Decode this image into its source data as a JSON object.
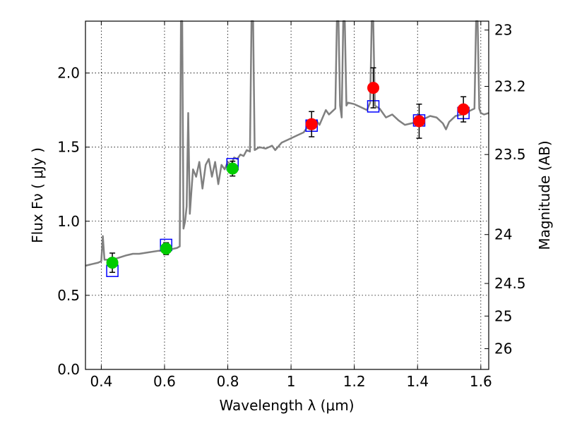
{
  "chart_data": {
    "type": "scatter",
    "title": "",
    "xlabel": "Wavelength  λ (μm)",
    "ylabel": "Flux  Fν  ( μJy )",
    "y2label": "Magnitude (AB)",
    "xlim": [
      0.35,
      1.625
    ],
    "ylim": [
      0.0,
      2.35
    ],
    "grid": true,
    "x_ticks": [
      0.4,
      0.6,
      0.8,
      1.0,
      1.2,
      1.4,
      1.6
    ],
    "x_tick_labels": [
      "0.4",
      "0.6",
      "0.8",
      "1",
      "1.2",
      "1.4",
      "1.6"
    ],
    "y_ticks": [
      0.0,
      0.5,
      1.0,
      1.5,
      2.0
    ],
    "y_tick_labels": [
      "0.0",
      "0.5",
      "1.0",
      "1.5",
      "2.0"
    ],
    "mag_ticks": [
      {
        "label": "23",
        "flux": 2.29
      },
      {
        "label": "23.2",
        "flux": 1.91
      },
      {
        "label": "23.5",
        "flux": 1.45
      },
      {
        "label": "24",
        "flux": 0.91
      },
      {
        "label": "24.5",
        "flux": 0.58
      },
      {
        "label": "25",
        "flux": 0.36
      },
      {
        "label": "26",
        "flux": 0.14
      }
    ],
    "series": [
      {
        "name": "model_spectrum",
        "kind": "line",
        "color": "#808080",
        "points": [
          [
            0.35,
            0.7
          ],
          [
            0.37,
            0.71
          ],
          [
            0.39,
            0.72
          ],
          [
            0.4,
            0.73
          ],
          [
            0.405,
            0.9
          ],
          [
            0.41,
            0.74
          ],
          [
            0.43,
            0.74
          ],
          [
            0.45,
            0.75
          ],
          [
            0.48,
            0.77
          ],
          [
            0.5,
            0.78
          ],
          [
            0.52,
            0.78
          ],
          [
            0.55,
            0.79
          ],
          [
            0.58,
            0.8
          ],
          [
            0.6,
            0.8
          ],
          [
            0.62,
            0.81
          ],
          [
            0.64,
            0.82
          ],
          [
            0.648,
            0.83
          ],
          [
            0.652,
            2.35
          ],
          [
            0.656,
            2.35
          ],
          [
            0.66,
            0.95
          ],
          [
            0.665,
            1.0
          ],
          [
            0.67,
            1.1
          ],
          [
            0.675,
            1.73
          ],
          [
            0.68,
            1.05
          ],
          [
            0.685,
            1.2
          ],
          [
            0.69,
            1.35
          ],
          [
            0.7,
            1.3
          ],
          [
            0.71,
            1.4
          ],
          [
            0.72,
            1.22
          ],
          [
            0.73,
            1.38
          ],
          [
            0.74,
            1.42
          ],
          [
            0.75,
            1.3
          ],
          [
            0.76,
            1.4
          ],
          [
            0.77,
            1.25
          ],
          [
            0.78,
            1.38
          ],
          [
            0.79,
            1.35
          ],
          [
            0.8,
            1.4
          ],
          [
            0.81,
            1.38
          ],
          [
            0.82,
            1.43
          ],
          [
            0.83,
            1.42
          ],
          [
            0.84,
            1.45
          ],
          [
            0.85,
            1.44
          ],
          [
            0.86,
            1.48
          ],
          [
            0.87,
            1.47
          ],
          [
            0.875,
            2.35
          ],
          [
            0.88,
            2.35
          ],
          [
            0.885,
            1.48
          ],
          [
            0.9,
            1.5
          ],
          [
            0.92,
            1.49
          ],
          [
            0.94,
            1.51
          ],
          [
            0.95,
            1.48
          ],
          [
            0.97,
            1.53
          ],
          [
            0.99,
            1.55
          ],
          [
            1.0,
            1.56
          ],
          [
            1.02,
            1.58
          ],
          [
            1.04,
            1.6
          ],
          [
            1.05,
            1.63
          ],
          [
            1.06,
            1.62
          ],
          [
            1.08,
            1.68
          ],
          [
            1.09,
            1.65
          ],
          [
            1.1,
            1.7
          ],
          [
            1.11,
            1.75
          ],
          [
            1.12,
            1.72
          ],
          [
            1.13,
            1.74
          ],
          [
            1.14,
            1.76
          ],
          [
            1.145,
            2.35
          ],
          [
            1.15,
            2.35
          ],
          [
            1.155,
            1.78
          ],
          [
            1.16,
            1.7
          ],
          [
            1.165,
            2.35
          ],
          [
            1.17,
            2.35
          ],
          [
            1.175,
            1.78
          ],
          [
            1.18,
            1.8
          ],
          [
            1.2,
            1.79
          ],
          [
            1.22,
            1.77
          ],
          [
            1.24,
            1.75
          ],
          [
            1.25,
            1.8
          ],
          [
            1.255,
            2.35
          ],
          [
            1.26,
            2.35
          ],
          [
            1.265,
            1.78
          ],
          [
            1.28,
            1.76
          ],
          [
            1.3,
            1.7
          ],
          [
            1.32,
            1.72
          ],
          [
            1.34,
            1.68
          ],
          [
            1.36,
            1.65
          ],
          [
            1.38,
            1.66
          ],
          [
            1.4,
            1.67
          ],
          [
            1.42,
            1.69
          ],
          [
            1.44,
            1.71
          ],
          [
            1.46,
            1.7
          ],
          [
            1.48,
            1.66
          ],
          [
            1.49,
            1.62
          ],
          [
            1.5,
            1.67
          ],
          [
            1.52,
            1.71
          ],
          [
            1.54,
            1.72
          ],
          [
            1.56,
            1.74
          ],
          [
            1.58,
            1.76
          ],
          [
            1.585,
            2.35
          ],
          [
            1.59,
            2.35
          ],
          [
            1.595,
            1.76
          ],
          [
            1.6,
            1.73
          ],
          [
            1.61,
            1.72
          ],
          [
            1.625,
            1.73
          ]
        ]
      },
      {
        "name": "observed_green",
        "kind": "points",
        "color": "#00cc00",
        "points": [
          {
            "x": 0.435,
            "y": 0.72,
            "err": 0.065
          },
          {
            "x": 0.605,
            "y": 0.815,
            "err": 0.04
          },
          {
            "x": 0.815,
            "y": 1.355,
            "err": 0.05
          }
        ]
      },
      {
        "name": "observed_red",
        "kind": "points",
        "color": "#ff0000",
        "points": [
          {
            "x": 1.065,
            "y": 1.655,
            "err": 0.085
          },
          {
            "x": 1.26,
            "y": 1.9,
            "err": 0.135
          },
          {
            "x": 1.405,
            "y": 1.675,
            "err": 0.115
          },
          {
            "x": 1.545,
            "y": 1.755,
            "err": 0.085
          }
        ]
      },
      {
        "name": "model_photometry",
        "kind": "squares",
        "color": "#0000ff",
        "points": [
          {
            "x": 0.435,
            "y": 0.665
          },
          {
            "x": 0.605,
            "y": 0.84
          },
          {
            "x": 0.815,
            "y": 1.385
          },
          {
            "x": 1.065,
            "y": 1.645
          },
          {
            "x": 1.26,
            "y": 1.775
          },
          {
            "x": 1.405,
            "y": 1.68
          },
          {
            "x": 1.545,
            "y": 1.73
          }
        ]
      }
    ]
  }
}
